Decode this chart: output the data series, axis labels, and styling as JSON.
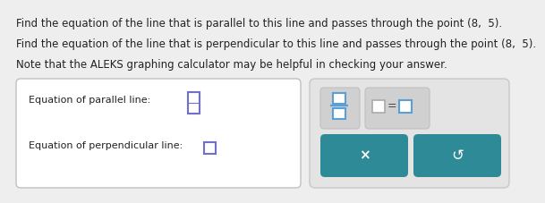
{
  "bg_color": "#eeeeee",
  "text_lines": [
    "Find the equation of the line that is parallel to this line and passes through the point (8,  5).",
    "Find the equation of the line that is perpendicular to this line and passes through the point (8,  5).",
    "Note that the ALEKS graphing calculator may be helpful in checking your answer."
  ],
  "parallel_label": "Equation of parallel line:",
  "perpendicular_label": "Equation of perpendicular line:",
  "white": "#ffffff",
  "box_border": "#c0c0c0",
  "right_panel_bg": "#e4e4e4",
  "right_panel_border": "#c8c8c8",
  "frac_box_border": "#5b9fd4",
  "eq_box_border_gray": "#aaaaaa",
  "eq_box_border_blue": "#5b9fd4",
  "btn_color": "#2e8a96",
  "btn_text_color": "#ffffff",
  "input_border_parallel": "#7070cc",
  "input_border_perp": "#7070cc",
  "frac_inner_bg": "#d8d8d8",
  "eq_inner_bg": "#d0d0d0",
  "text_color": "#222222",
  "font_size_text": 8.5,
  "font_size_label": 8.0
}
